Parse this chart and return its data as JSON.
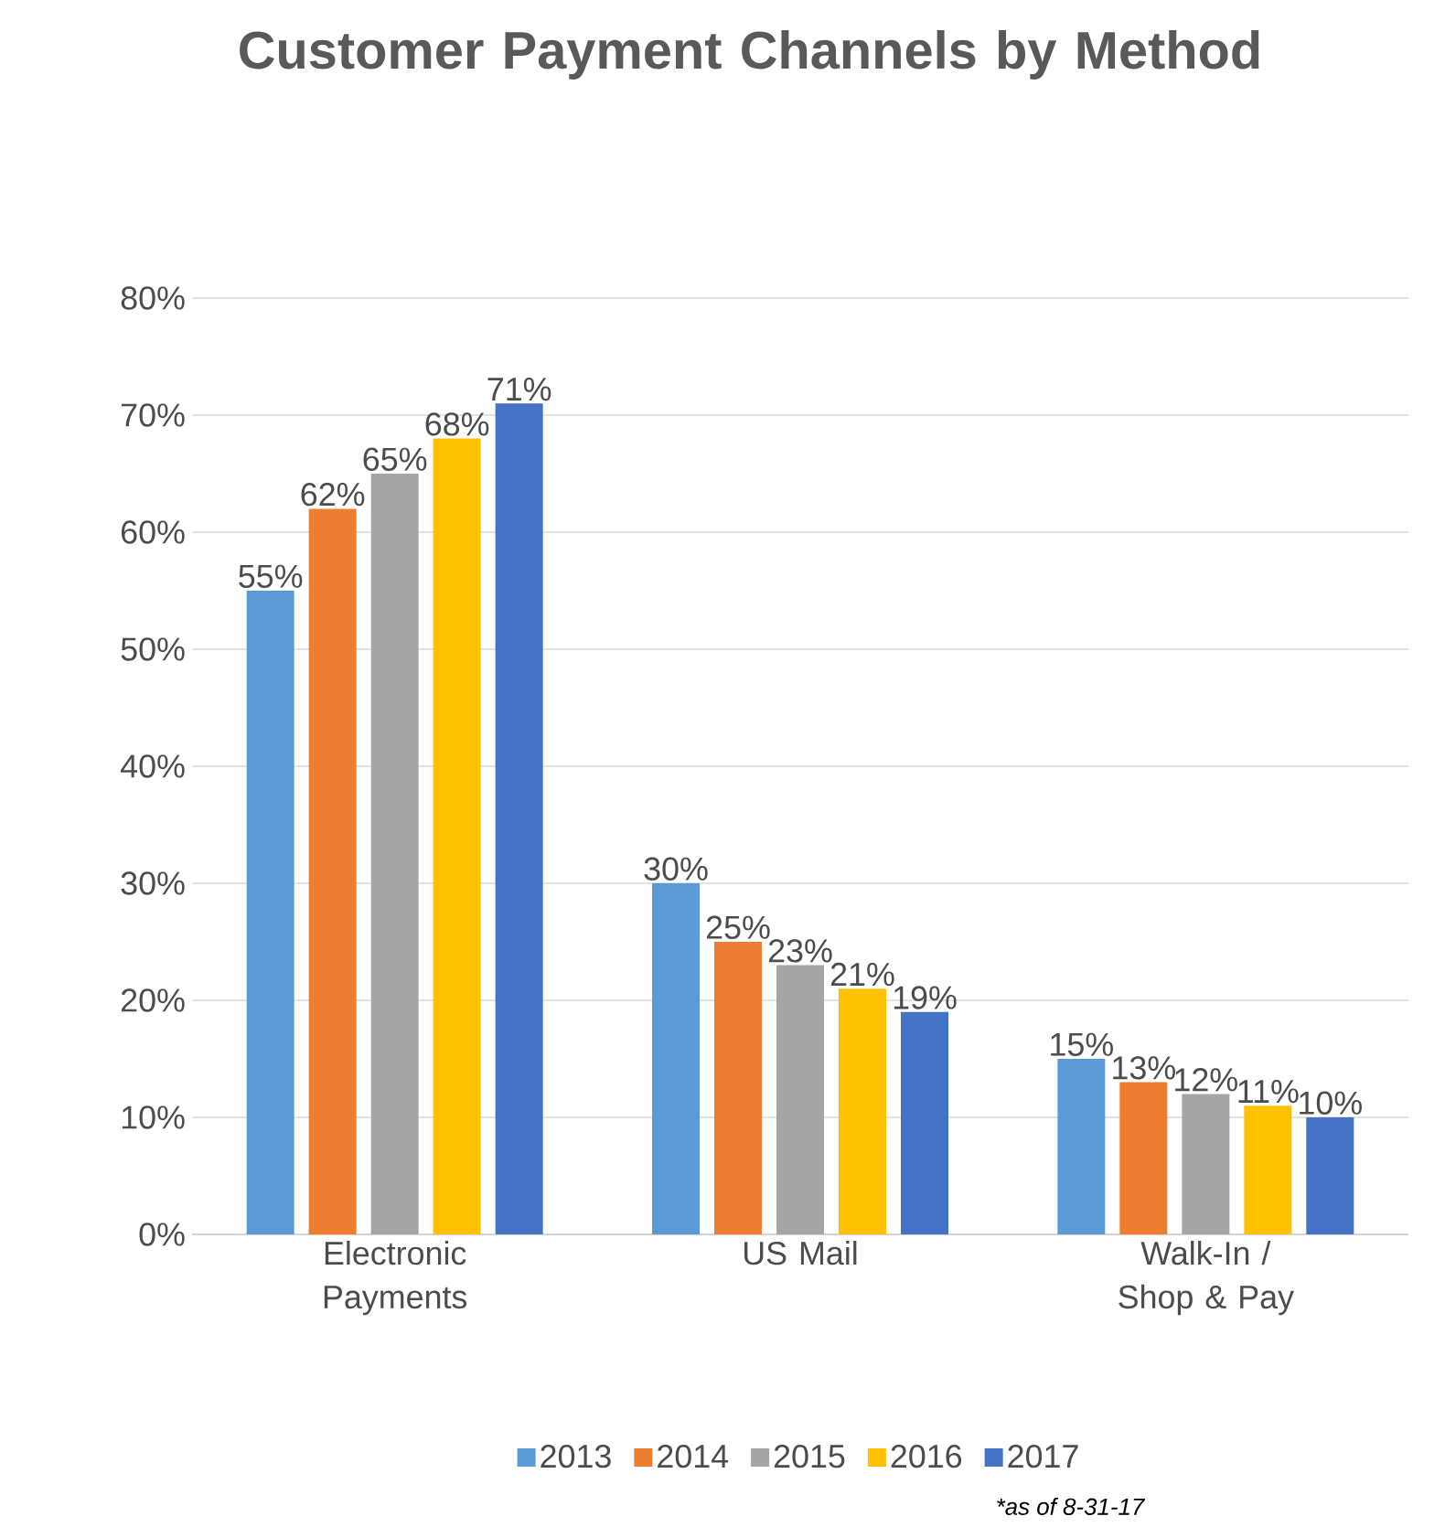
{
  "chart_data": {
    "type": "bar",
    "title": "Customer Payment Channels by Method",
    "categories": [
      "Electronic Payments",
      "US Mail",
      "Walk-In / Shop & Pay"
    ],
    "series": [
      {
        "name": "2013",
        "color": "#5b9bd5",
        "values": [
          55,
          30,
          15
        ],
        "value_labels": [
          "55%",
          "30%",
          "15%"
        ]
      },
      {
        "name": "2014",
        "color": "#ed7d31",
        "values": [
          62,
          25,
          13
        ],
        "value_labels": [
          "62%",
          "25%",
          "13%"
        ]
      },
      {
        "name": "2015",
        "color": "#a5a5a5",
        "values": [
          65,
          23,
          12
        ],
        "value_labels": [
          "65%",
          "23%",
          "12%"
        ]
      },
      {
        "name": "2016",
        "color": "#ffc000",
        "values": [
          68,
          21,
          11
        ],
        "value_labels": [
          "68%",
          "21%",
          "11%"
        ]
      },
      {
        "name": "2017",
        "color": "#4472c4",
        "values": [
          71,
          19,
          10
        ],
        "value_labels": [
          "71%",
          "19%",
          "10%"
        ]
      }
    ],
    "ylim": [
      0,
      80
    ],
    "yticks": [
      {
        "value": 0,
        "label": "0%"
      },
      {
        "value": 10,
        "label": "10%"
      },
      {
        "value": 20,
        "label": "20%"
      },
      {
        "value": 30,
        "label": "30%"
      },
      {
        "value": 40,
        "label": "40%"
      },
      {
        "value": 50,
        "label": "50%"
      },
      {
        "value": 60,
        "label": "60%"
      },
      {
        "value": 70,
        "label": "70%"
      },
      {
        "value": 80,
        "label": "80%"
      }
    ],
    "grid": "y",
    "legend": "bottom",
    "annotations": [
      "*as of 8-31-17"
    ]
  }
}
